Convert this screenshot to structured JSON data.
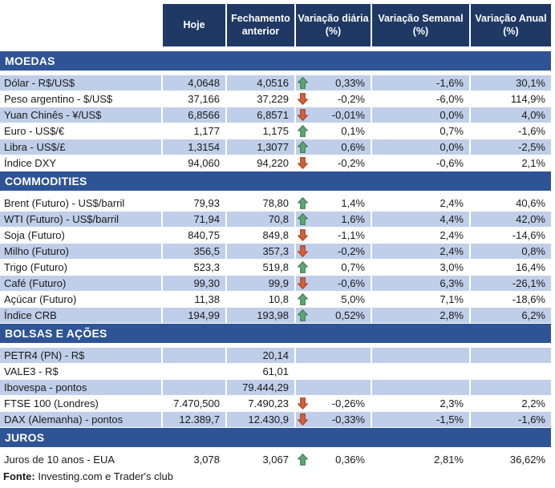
{
  "header": {
    "columns": [
      "Hoje",
      "Fechamento anterior",
      "Variação diária (%)",
      "Variação Semanal (%)",
      "Variação Anual (%)"
    ]
  },
  "sections": [
    {
      "title": "MOEDAS",
      "rows": [
        {
          "label": "Dólar - R$/US$",
          "hoje": "4,0648",
          "fechamento": "4,0516",
          "arrow": "up",
          "diaria": "0,33%",
          "semanal": "-1,6%",
          "anual": "30,1%"
        },
        {
          "label": "Peso argentino - $/US$",
          "hoje": "37,166",
          "fechamento": "37,229",
          "arrow": "down",
          "diaria": "-0,2%",
          "semanal": "-6,0%",
          "anual": "114,9%"
        },
        {
          "label": "Yuan Chinês - ¥/US$",
          "hoje": "6,8566",
          "fechamento": "6,8571",
          "arrow": "down",
          "diaria": "-0,01%",
          "semanal": "0,0%",
          "anual": "4,0%"
        },
        {
          "label": "Euro - US$/€",
          "hoje": "1,177",
          "fechamento": "1,175",
          "arrow": "up",
          "diaria": "0,1%",
          "semanal": "0,7%",
          "anual": "-1,6%"
        },
        {
          "label": "Libra - US$/£",
          "hoje": "1,3154",
          "fechamento": "1,3077",
          "arrow": "up",
          "diaria": "0,6%",
          "semanal": "0,0%",
          "anual": "-2,5%"
        },
        {
          "label": "Índice DXY",
          "hoje": "94,060",
          "fechamento": "94,220",
          "arrow": "down",
          "diaria": "-0,2%",
          "semanal": "-0,6%",
          "anual": "2,1%"
        }
      ]
    },
    {
      "title": "COMMODITIES",
      "rows": [
        {
          "label": "Brent (Futuro) - US$/barril",
          "hoje": "79,93",
          "fechamento": "78,80",
          "arrow": "up",
          "diaria": "1,4%",
          "semanal": "2,4%",
          "anual": "40,6%"
        },
        {
          "label": "WTI (Futuro) - US$/barril",
          "hoje": "71,94",
          "fechamento": "70,8",
          "arrow": "up",
          "diaria": "1,6%",
          "semanal": "4,4%",
          "anual": "42,0%"
        },
        {
          "label": "Soja (Futuro)",
          "hoje": "840,75",
          "fechamento": "849,8",
          "arrow": "down",
          "diaria": "-1,1%",
          "semanal": "2,4%",
          "anual": "-14,6%"
        },
        {
          "label": "Milho (Futuro)",
          "hoje": "356,5",
          "fechamento": "357,3",
          "arrow": "down",
          "diaria": "-0,2%",
          "semanal": "2,4%",
          "anual": "0,8%"
        },
        {
          "label": "Trigo (Futuro)",
          "hoje": "523,3",
          "fechamento": "519,8",
          "arrow": "up",
          "diaria": "0,7%",
          "semanal": "3,0%",
          "anual": "16,4%"
        },
        {
          "label": "Café (Futuro)",
          "hoje": "99,30",
          "fechamento": "99,9",
          "arrow": "down",
          "diaria": "-0,6%",
          "semanal": "6,3%",
          "anual": "-26,1%"
        },
        {
          "label": "Açúcar (Futuro)",
          "hoje": "11,38",
          "fechamento": "10,8",
          "arrow": "up",
          "diaria": "5,0%",
          "semanal": "7,1%",
          "anual": "-18,6%"
        },
        {
          "label": "Índice CRB",
          "hoje": "194,99",
          "fechamento": "193,98",
          "arrow": "up",
          "diaria": "0,52%",
          "semanal": "2,8%",
          "anual": "6,2%"
        }
      ]
    },
    {
      "title": "BOLSAS E AÇÕES",
      "rows": [
        {
          "label": "PETR4 (PN) - R$",
          "hoje": "",
          "fechamento": "20,14",
          "arrow": "",
          "diaria": "",
          "semanal": "",
          "anual": ""
        },
        {
          "label": "VALE3 - R$",
          "hoje": "",
          "fechamento": "61,01",
          "arrow": "",
          "diaria": "",
          "semanal": "",
          "anual": ""
        },
        {
          "label": "Ibovespa - pontos",
          "hoje": "",
          "fechamento": "79.444,29",
          "arrow": "",
          "diaria": "",
          "semanal": "",
          "anual": ""
        },
        {
          "label": "FTSE 100 (Londres)",
          "hoje": "7.470,500",
          "fechamento": "7.490,23",
          "arrow": "down",
          "diaria": "-0,26%",
          "semanal": "2,3%",
          "anual": "2,2%"
        },
        {
          "label": "DAX (Alemanha) - pontos",
          "hoje": "12.389,7",
          "fechamento": "12.430,9",
          "arrow": "down",
          "diaria": "-0,33%",
          "semanal": "-1,5%",
          "anual": "-1,6%"
        }
      ]
    },
    {
      "title": "JUROS",
      "rows": [
        {
          "label": "Juros de 10 anos - EUA",
          "hoje": "3,078",
          "fechamento": "3,067",
          "arrow": "up",
          "diaria": "0,36%",
          "semanal": "2,81%",
          "anual": "36,62%"
        }
      ]
    }
  ],
  "footer": {
    "source_label": "Fonte:",
    "source_text": " Investing.com e Trader's club"
  },
  "colors": {
    "header_navy": "#1f3864",
    "section_band_blue": "#2f5496",
    "stripe_blue": "#bfcee9",
    "up_arrow_green": "#5ea671",
    "up_arrow_border": "#3a7a52",
    "down_arrow_red": "#d4603a",
    "down_arrow_border": "#a33f1d"
  },
  "icons": {
    "up": "up-arrow-icon",
    "down": "down-arrow-icon"
  }
}
